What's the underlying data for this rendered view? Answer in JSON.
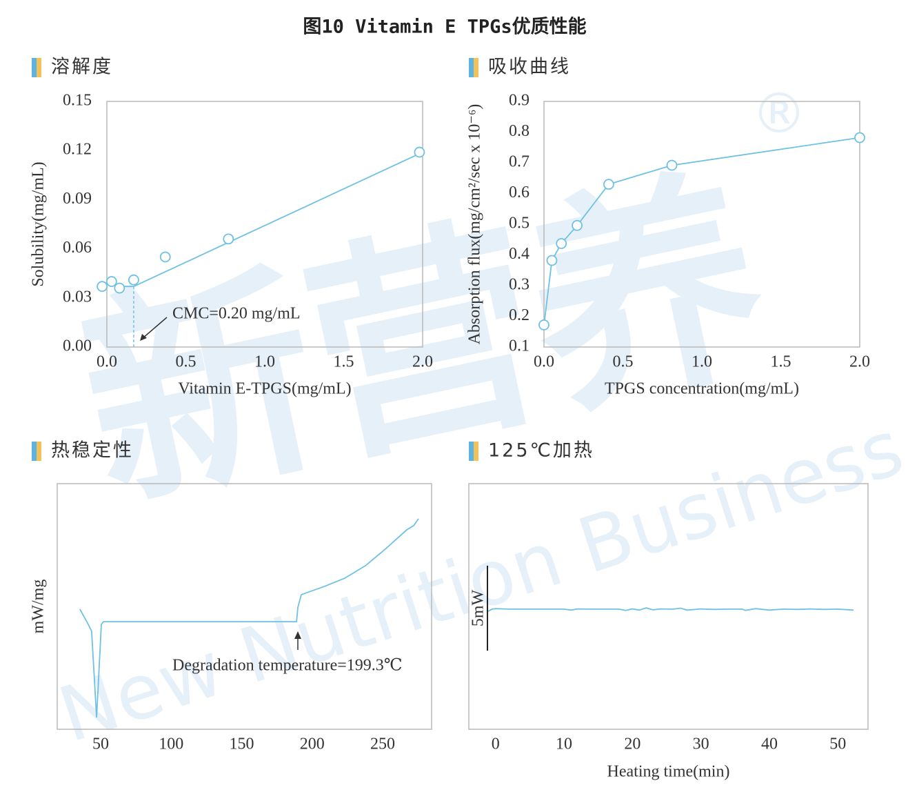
{
  "title": "图10 Vitamin E TPGs优质性能",
  "watermark": {
    "text": "新营养",
    "subtext": "New Nutrition Business",
    "mark": "®"
  },
  "chart_data": [
    {
      "type": "scatter",
      "title": "溶解度",
      "color": "#6ec1e4",
      "markers": true,
      "x": [
        -0.03,
        0.03,
        0.08,
        0.17,
        0.37,
        0.77,
        1.98
      ],
      "values": [
        0.037,
        0.04,
        0.036,
        0.041,
        0.055,
        0.066,
        0.119
      ],
      "fit": {
        "x": [
          -0.04,
          0.07,
          0.17,
          2.0
        ],
        "values": [
          0.04,
          0.037,
          0.037,
          0.119
        ]
      },
      "dashed_line": {
        "x": 0.17,
        "y": 0.037
      },
      "annotation": "CMC=0.20 mg/mL",
      "xlim": [
        0,
        2.0
      ],
      "ylim": [
        0,
        0.15
      ],
      "xticks": [
        {
          "value": 0,
          "label": "0.0"
        },
        0.5,
        {
          "value": 1,
          "label": "1.0"
        },
        1.5,
        {
          "value": 2,
          "label": "2.0"
        }
      ],
      "yticks": [
        {
          "value": 0,
          "label": "0.00"
        },
        {
          "value": 0.03,
          "label": "0.03"
        },
        {
          "value": 0.06,
          "label": "0.06"
        },
        {
          "value": 0.09,
          "label": "0.09"
        },
        {
          "value": 0.12,
          "label": "0.12"
        },
        {
          "value": 0.15,
          "label": "0.15"
        }
      ],
      "xlabel": "Vitamin E-TPGS(mg/mL)",
      "ylabel": "Solubility(mg/mL)"
    },
    {
      "type": "line",
      "title": "吸收曲线",
      "color": "#6ec1e4",
      "markers": true,
      "x": [
        0.0,
        0.05,
        0.11,
        0.21,
        0.41,
        0.81,
        2.0
      ],
      "values": [
        0.172,
        0.382,
        0.437,
        0.496,
        0.63,
        0.692,
        0.782
      ],
      "xlim": [
        0,
        2.0
      ],
      "ylim": [
        0.1,
        0.9
      ],
      "xticks": [
        {
          "value": 0,
          "label": "0.0"
        },
        0.5,
        {
          "value": 1,
          "label": "1.0"
        },
        1.5,
        {
          "value": 2,
          "label": "2.0"
        }
      ],
      "yticks": [
        0.1,
        0.2,
        0.3,
        0.4,
        0.5,
        0.6,
        0.7,
        0.8,
        0.9
      ],
      "xlabel": "TPGS concentration(mg/mL)",
      "ylabel": "Absorption flux(mg/cm²/sec x 10⁻⁶)"
    },
    {
      "type": "line",
      "title": "热稳定性",
      "color": "#6ec1e4",
      "markers": false,
      "x": [
        35.3,
        41.2,
        43.6,
        47.1,
        50.5,
        52.0,
        188.9,
        189.9,
        192.3,
        208.4,
        223.1,
        237.8,
        252.4,
        267.1,
        272.0,
        275.4
      ],
      "values": [
        48.9,
        42.7,
        39.9,
        4.8,
        42.7,
        43.8,
        43.8,
        49.7,
        54.8,
        58.1,
        61.5,
        66.6,
        73.6,
        81.2,
        82.9,
        85.7
      ],
      "annotation": "Degradation temperature=199.3℃",
      "xlim": [
        19.2,
        284.7
      ],
      "ylim": [
        0,
        100
      ],
      "xticks": [
        50,
        100,
        150,
        200,
        250
      ],
      "ylabel": "mW/mg"
    },
    {
      "type": "line",
      "title": "125℃加热",
      "color": "#6ec1e4",
      "markers": false,
      "x": [
        -1.1,
        -0.5,
        0,
        2,
        4,
        6,
        8,
        10,
        11,
        12,
        14,
        16,
        18,
        19,
        20,
        21,
        22,
        23,
        24,
        26,
        27,
        28,
        30,
        32,
        34,
        36,
        36.5,
        38,
        40,
        42,
        44,
        46,
        48,
        50,
        52.3
      ],
      "values": [
        48.0,
        48.9,
        49.1,
        48.9,
        48.9,
        48.9,
        48.9,
        48.9,
        48.5,
        49.0,
        48.9,
        48.9,
        48.9,
        48.4,
        49.0,
        48.5,
        49.4,
        48.6,
        49.0,
        48.9,
        49.3,
        48.5,
        49.0,
        48.8,
        48.9,
        48.9,
        48.4,
        49.1,
        48.5,
        48.9,
        48.8,
        49.0,
        48.8,
        48.9,
        48.5
      ],
      "scale_bar": {
        "label": "5mW",
        "range": [
          32.0,
          66.6
        ]
      },
      "xlim": [
        -3.9,
        54.4
      ],
      "ylim": [
        0,
        100
      ],
      "xticks": [
        0,
        10,
        20,
        30,
        40,
        50
      ],
      "xlabel": "Heating time(min)"
    }
  ]
}
